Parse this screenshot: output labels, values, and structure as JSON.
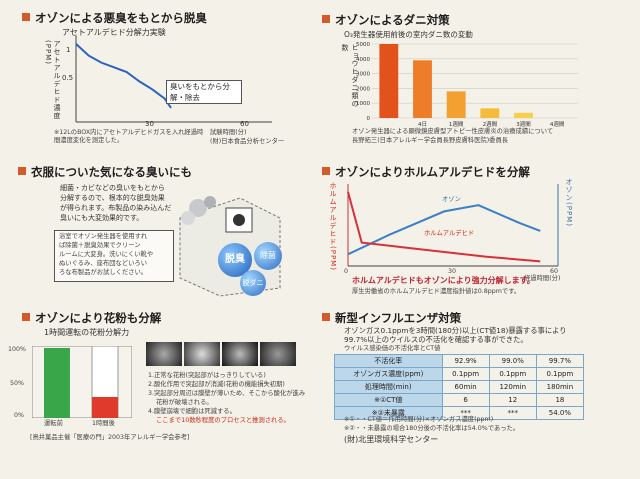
{
  "p1": {
    "title": "オゾンによる悪臭をもとから脱臭",
    "subtitle": "アセトアルデヒド分解力実験",
    "ylabel": "アセトアルデヒド濃度(PPM)",
    "yticks": [
      "1",
      "0.5"
    ],
    "xticks": [
      "30",
      "60"
    ],
    "callout": "臭いをもとから分解・除去",
    "note": "※12LのBOX内にアセトアルデヒドガスを入れ経過時間濃度変化を測定した。",
    "xlabel": "試験時間(分)",
    "source": "(財)日本食品分析センター"
  },
  "p2": {
    "title": "オゾンによるダニ対策",
    "subtitle": "O₃発生器使用前後の室内ダニ数の変動",
    "ylabel": "ヒョウヒダニ類の数",
    "note1": "オゾン発生器による顕微鏡皮膚型アトピー性皮膚炎の治療成績について",
    "note2": "長野拓三(日本アレルギー学会員長野皮膚科医院)委員長"
  },
  "p3": {
    "title": "衣服についた気になる臭いにも",
    "body": [
      "細菌・カビなどの臭いをもとから",
      "分解するので、根本的な脱臭効果",
      "が得られます。布製品の染み込んだ",
      "臭いにも大変効果的です。"
    ],
    "box": [
      "浴室でオゾン発生器を使用すれ",
      "ば除菌＋脱臭効果でクリーン",
      "ルームに大変身。洗いにくい靴や",
      "ぬいぐるみ、座布団などいろい",
      "ろな布製品がお試しください。"
    ],
    "ball1": "脱臭",
    "ball2": "除菌",
    "ball3": "脱ダニ"
  },
  "p4": {
    "title": "オゾンによりホルムアルデヒドを分解",
    "ylabel": "ホルムアルデヒド(PPM)",
    "ozone_label": "オゾン(PPM)",
    "line1": "オゾン",
    "line2": "ホルムアルデヒド",
    "xticks": [
      "0",
      "30",
      "60"
    ],
    "xlabel": "経過時間(分)",
    "caption": "ホルムアルデヒドもオゾンにより強力分解します。",
    "note": "厚生労働省のホルムアルデヒド濃度指針値は0.8ppmです。"
  },
  "p5": {
    "title": "オゾンにより花粉も分解",
    "subtitle": "1時間運転の花粉分解力",
    "yticks": [
      "100%",
      "50%",
      "0%"
    ],
    "bar1": "運転前",
    "bar2": "1時間後",
    "items": [
      "1.正常な花粉(突起部がはっきりしている)",
      "2.酸化作用で突起部が消滅(花粉の機能損失初期)",
      "3.突起部分周辺は膜壁が薄いため、そこから酸化が進み",
      "花粉が破壊される。",
      "4.膜壁崩壊で細胞は死滅する。"
    ],
    "highlight": "ここまで10数秒程度のプロセスと推測される。",
    "source": "[鳥井菓品主催「医療の門」2003年アレルギー学会参考]"
  },
  "p6": {
    "title": "新型インフルエンザ対策",
    "lead": [
      "オゾンガス0.1ppmを3時間(180分)以上(CT値18)暴露する事により",
      "99.7%以上のウイルスの不活化を確認する事ができた。"
    ],
    "tablecap": "ウイルス感染価の不活化率とCT値",
    "rows": [
      [
        "不活化率",
        "92.9%",
        "99.0%",
        "99.7%"
      ],
      [
        "オゾンガス濃度(ppm)",
        "0.1ppm",
        "0.1ppm",
        "0.1ppm"
      ],
      [
        "処理時間(min)",
        "60min",
        "120min",
        "180min"
      ],
      [
        "※①CT値",
        "6",
        "12",
        "18"
      ],
      [
        "※②未暴露",
        "***",
        "***",
        "54.0%"
      ]
    ],
    "foot1": "※①・・CT値＝作用時間(分)×オゾンガス濃度(ppm)",
    "foot2": "※②・・未暴露の場合180分後の不活化率は54.0%であった。",
    "source": "(財)北里環境科学センター"
  },
  "chart_data": [
    {
      "type": "line",
      "title": "アセトアルデヒド分解力実験",
      "xlabel": "試験時間(分)",
      "ylabel": "アセトアルデヒド濃度(PPM)",
      "xlim": [
        0,
        60
      ],
      "ylim": [
        0,
        1.05
      ],
      "series": [
        {
          "values": [
            [
              0,
              1.0
            ],
            [
              4,
              0.85
            ],
            [
              8,
              0.76
            ],
            [
              12,
              0.7
            ],
            [
              16,
              0.64
            ],
            [
              20,
              0.52
            ],
            [
              24,
              0.42
            ],
            [
              28,
              0.3
            ],
            [
              30,
              0.18
            ]
          ]
        }
      ]
    },
    {
      "type": "bar",
      "title": "O₃発生器使用前後の室内ダニ数の変動",
      "ylabel": "ヒョウヒダニ類の数",
      "ylim": [
        0,
        5000
      ],
      "categories": [
        "",
        "4日",
        "1週間",
        "2週間",
        "3週間",
        "4週間"
      ],
      "values": [
        5000,
        3900,
        1800,
        650,
        350,
        0
      ],
      "colors": [
        "#e2521c",
        "#ee7d2a",
        "#f2a02f",
        "#f5bb3a",
        "#f8cf4c",
        "#fadc66"
      ]
    },
    {
      "type": "line",
      "title": "オゾンによりホルムアルデヒドを分解",
      "xlabel": "経過時間(分)",
      "xlim": [
        0,
        60
      ],
      "series": [
        {
          "name": "オゾン",
          "color": "#3b7fc4",
          "values": [
            [
              0,
              15
            ],
            [
              12,
              40
            ],
            [
              28,
              70
            ],
            [
              38,
              78
            ],
            [
              50,
              55
            ],
            [
              56,
              45
            ]
          ]
        },
        {
          "name": "ホルムアルデヒド",
          "color": "#d6303a",
          "values": [
            [
              0,
              95
            ],
            [
              4,
              30
            ],
            [
              20,
              22
            ],
            [
              40,
              12
            ],
            [
              56,
              6
            ]
          ]
        }
      ]
    },
    {
      "type": "bar",
      "title": "1時間運転の花粉分解力",
      "categories": [
        "運転前",
        "1時間後"
      ],
      "values": [
        100,
        30
      ],
      "ylim": [
        0,
        100
      ]
    }
  ]
}
